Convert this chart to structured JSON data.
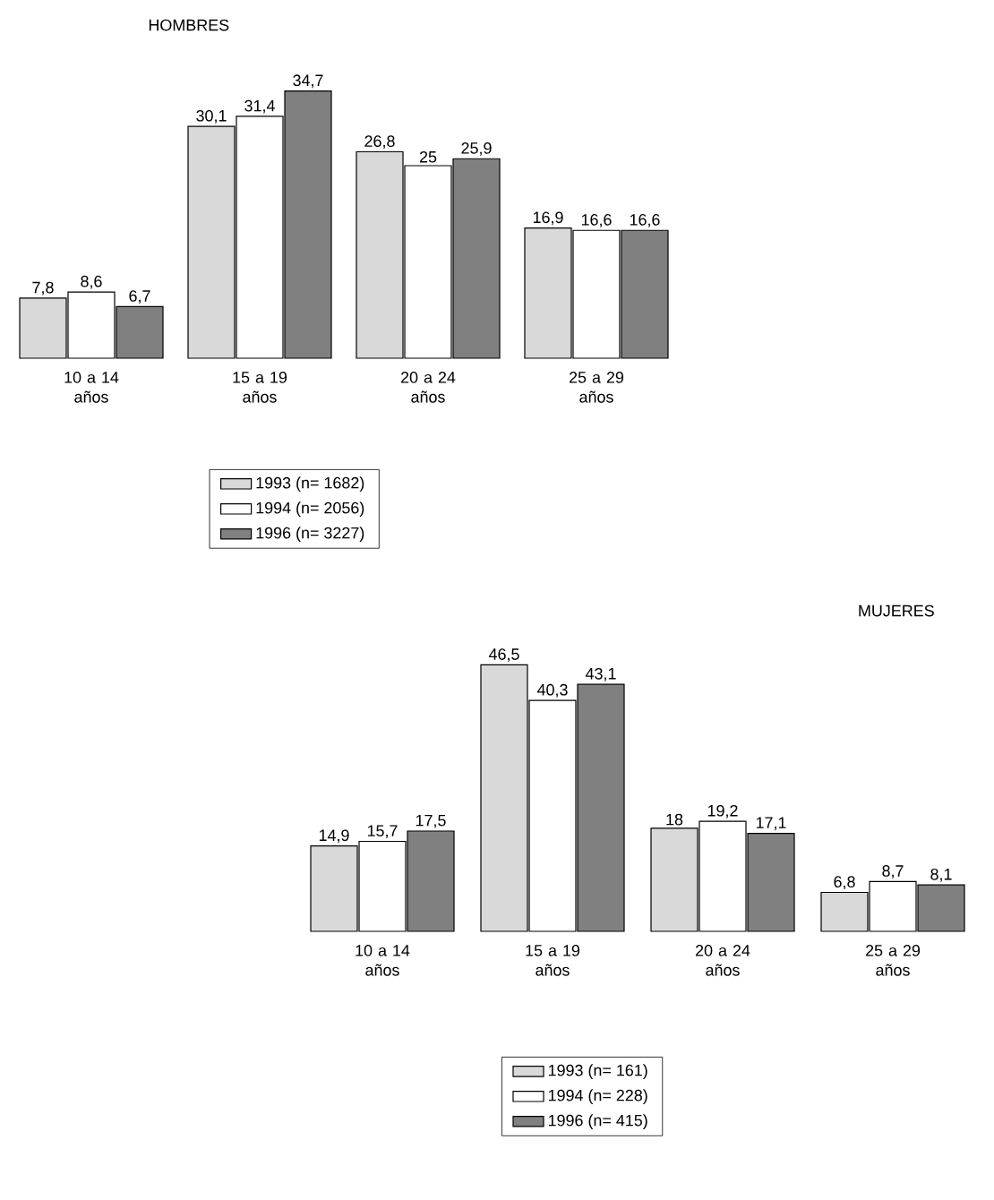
{
  "chart_data": [
    {
      "type": "bar",
      "title": "HOMBRES",
      "categories": [
        "10 a 14 años",
        "15 a 19 años",
        "20 a 24 años",
        "25 a 29 años"
      ],
      "data_labels": true,
      "legend": "bottom",
      "series": [
        {
          "name": "1993 (n= 1682)",
          "color": "#d9d9d9",
          "values": [
            7.8,
            30.1,
            26.8,
            16.9
          ],
          "value_labels": [
            "7,8",
            "30,1",
            "26,8",
            "16,9"
          ]
        },
        {
          "name": "1994 (n= 2056)",
          "color": "#ffffff",
          "values": [
            8.6,
            31.4,
            25,
            16.6
          ],
          "value_labels": [
            "8,6",
            "31,4",
            "25",
            "16,6"
          ]
        },
        {
          "name": "1996 (n= 3227)",
          "color": "#808080",
          "values": [
            6.7,
            34.7,
            25.9,
            16.6
          ],
          "value_labels": [
            "6,7",
            "34,7",
            "25,9",
            "16,6"
          ]
        }
      ]
    },
    {
      "type": "bar",
      "title": "MUJERES",
      "categories": [
        "10 a 14 años",
        "15 a 19 años",
        "20 a 24 años",
        "25 a 29 años"
      ],
      "data_labels": true,
      "legend": "bottom",
      "series": [
        {
          "name": "1993 (n= 161)",
          "color": "#d9d9d9",
          "values": [
            14.9,
            46.5,
            18,
            6.8
          ],
          "value_labels": [
            "14,9",
            "46,5",
            "18",
            "6,8"
          ]
        },
        {
          "name": "1994 (n= 228)",
          "color": "#ffffff",
          "values": [
            15.7,
            40.3,
            19.2,
            8.7
          ],
          "value_labels": [
            "15,7",
            "40,3",
            "19,2",
            "8,7"
          ]
        },
        {
          "name": "1996 (n= 415)",
          "color": "#808080",
          "values": [
            17.5,
            43.1,
            17.1,
            8.1
          ],
          "value_labels": [
            "17,5",
            "43,1",
            "17,1",
            "8,1"
          ]
        }
      ]
    }
  ]
}
